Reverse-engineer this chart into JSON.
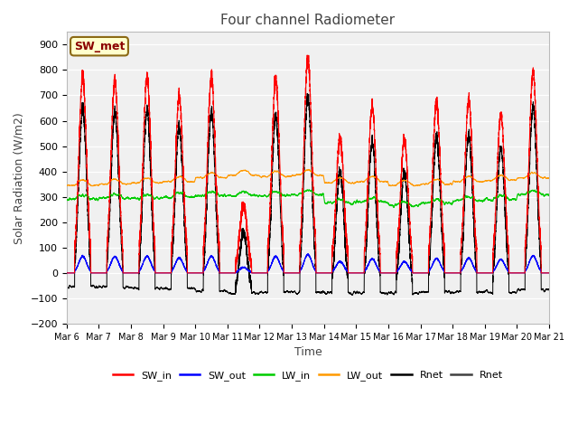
{
  "title": "Four channel Radiometer",
  "xlabel": "Time",
  "ylabel": "Solar Radiation (W/m2)",
  "ylim": [
    -200,
    950
  ],
  "yticks": [
    -200,
    -100,
    0,
    100,
    200,
    300,
    400,
    500,
    600,
    700,
    800,
    900
  ],
  "background_color": "#ffffff",
  "plot_bg_color": "#f0f0f0",
  "annotation_text": "SW_met",
  "annotation_bg": "#ffffcc",
  "annotation_border": "#8b6914",
  "days": 15,
  "start_day": 6,
  "colors": {
    "SW_in": "#ff0000",
    "SW_out": "#0000ff",
    "LW_in": "#00cc00",
    "LW_out": "#ff9900",
    "Rnet_black": "#000000",
    "Rnet_dark": "#404040"
  },
  "legend_labels": [
    "SW_in",
    "SW_out",
    "LW_in",
    "LW_out",
    "Rnet",
    "Rnet"
  ],
  "legend_colors": [
    "#ff0000",
    "#0000ff",
    "#00cc00",
    "#ff9900",
    "#000000",
    "#404040"
  ]
}
